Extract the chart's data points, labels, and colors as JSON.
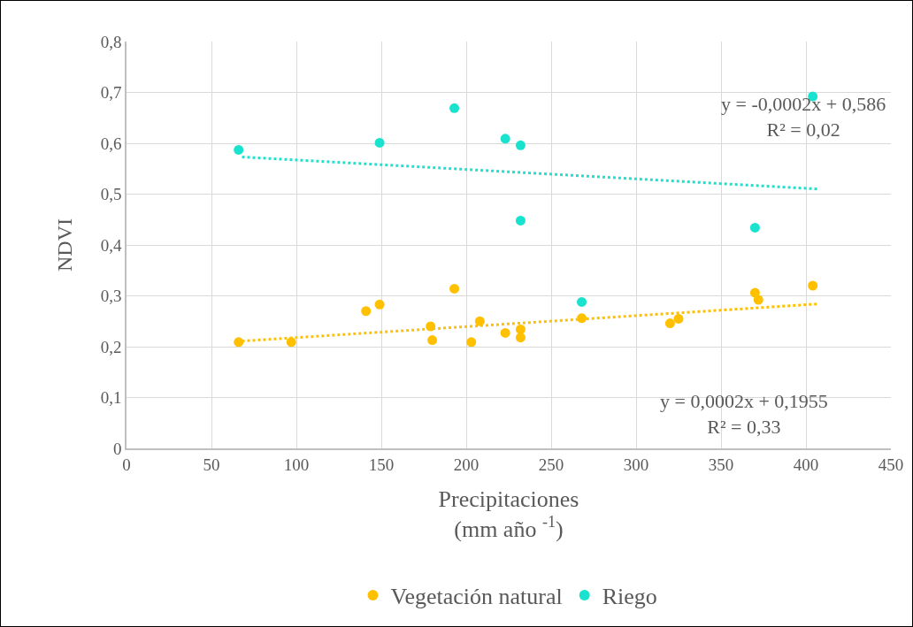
{
  "chart_data": {
    "type": "scatter",
    "xlabel": "Precipitaciones\n(mm año $^{-1}$)",
    "ylabel": "NDVI",
    "xlim": [
      0,
      450
    ],
    "xticks": [
      0,
      50,
      100,
      150,
      200,
      250,
      300,
      350,
      400,
      450
    ],
    "ylim": [
      0,
      0.8
    ],
    "yticks": [
      {
        "value": 0,
        "label": "0"
      },
      {
        "value": 0.1,
        "label": "0,1"
      },
      {
        "value": 0.2,
        "label": "0,2"
      },
      {
        "value": 0.3,
        "label": "0,3"
      },
      {
        "value": 0.4,
        "label": "0,4"
      },
      {
        "value": 0.5,
        "label": "0,5"
      },
      {
        "value": 0.6,
        "label": "0,6"
      },
      {
        "value": 0.7,
        "label": "0,7"
      },
      {
        "value": 0.8,
        "label": "0,8"
      }
    ],
    "grid": true,
    "legend": "bottom",
    "series": [
      {
        "name": "Vegetación natural",
        "color": "#ffc000",
        "marker": "circle",
        "x": [
          66,
          97,
          141,
          149,
          193,
          179,
          180,
          208,
          203,
          223,
          232,
          232,
          268,
          320,
          325,
          370,
          372,
          404
        ],
        "values": [
          0.209,
          0.209,
          0.27,
          0.283,
          0.314,
          0.24,
          0.213,
          0.25,
          0.209,
          0.227,
          0.234,
          0.218,
          0.256,
          0.246,
          0.255,
          0.306,
          0.292,
          0.32
        ]
      },
      {
        "name": "Riego",
        "color": "#19e3cf",
        "marker": "circle",
        "x": [
          66,
          149,
          193,
          223,
          232,
          232,
          268,
          370,
          404
        ],
        "values": [
          0.587,
          0.601,
          0.669,
          0.609,
          0.596,
          0.448,
          0.288,
          0.434,
          0.692
        ]
      },
      {
        "type": "line",
        "marker": "none",
        "line_style": "dotted",
        "color": "#ffc000",
        "x": [
          68,
          407
        ],
        "values": [
          0.211,
          0.284
        ]
      },
      {
        "type": "line",
        "marker": "none",
        "line_style": "dotted",
        "color": "#19e3cf",
        "x": [
          68,
          407
        ],
        "values": [
          0.573,
          0.51
        ]
      }
    ],
    "annotations": [
      "y = -0,0002x + 0,586\nR² = 0,02",
      "y = 0,0002x + 0,1955\nR² = 0,33"
    ]
  }
}
